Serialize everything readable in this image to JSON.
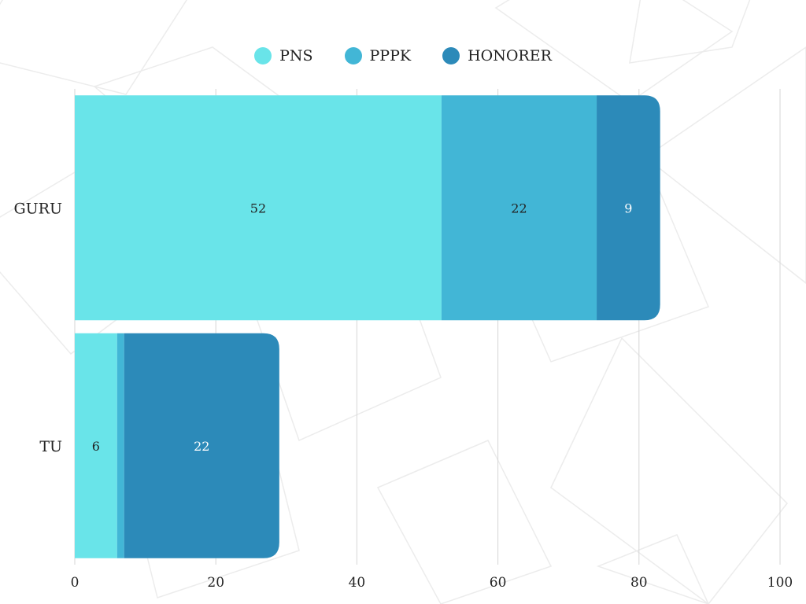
{
  "colors": {
    "pns": "#69e4e9",
    "pppk": "#42b6d6",
    "honorer": "#2c8ab9",
    "grid": "#d6d6d6",
    "pattern": "#ececec"
  },
  "chart_data": {
    "type": "bar",
    "orientation": "horizontal",
    "stacked": true,
    "title": "",
    "xlabel": "",
    "ylabel": "",
    "categories": [
      "GURU",
      "TU"
    ],
    "series": [
      {
        "name": "PNS",
        "values": [
          52,
          6
        ],
        "labels": [
          "52",
          "6"
        ]
      },
      {
        "name": "PPPK",
        "values": [
          22,
          1
        ],
        "labels": [
          "22",
          ""
        ]
      },
      {
        "name": "HONORER",
        "values": [
          9,
          22
        ],
        "labels": [
          "9",
          "22"
        ]
      }
    ],
    "xlim": [
      0,
      100
    ],
    "xticks": [
      0,
      20,
      40,
      60,
      80,
      100
    ],
    "xtick_labels": [
      "0",
      "20",
      "40",
      "60",
      "80",
      "100"
    ],
    "grid": true,
    "legend_position": "top-center"
  }
}
